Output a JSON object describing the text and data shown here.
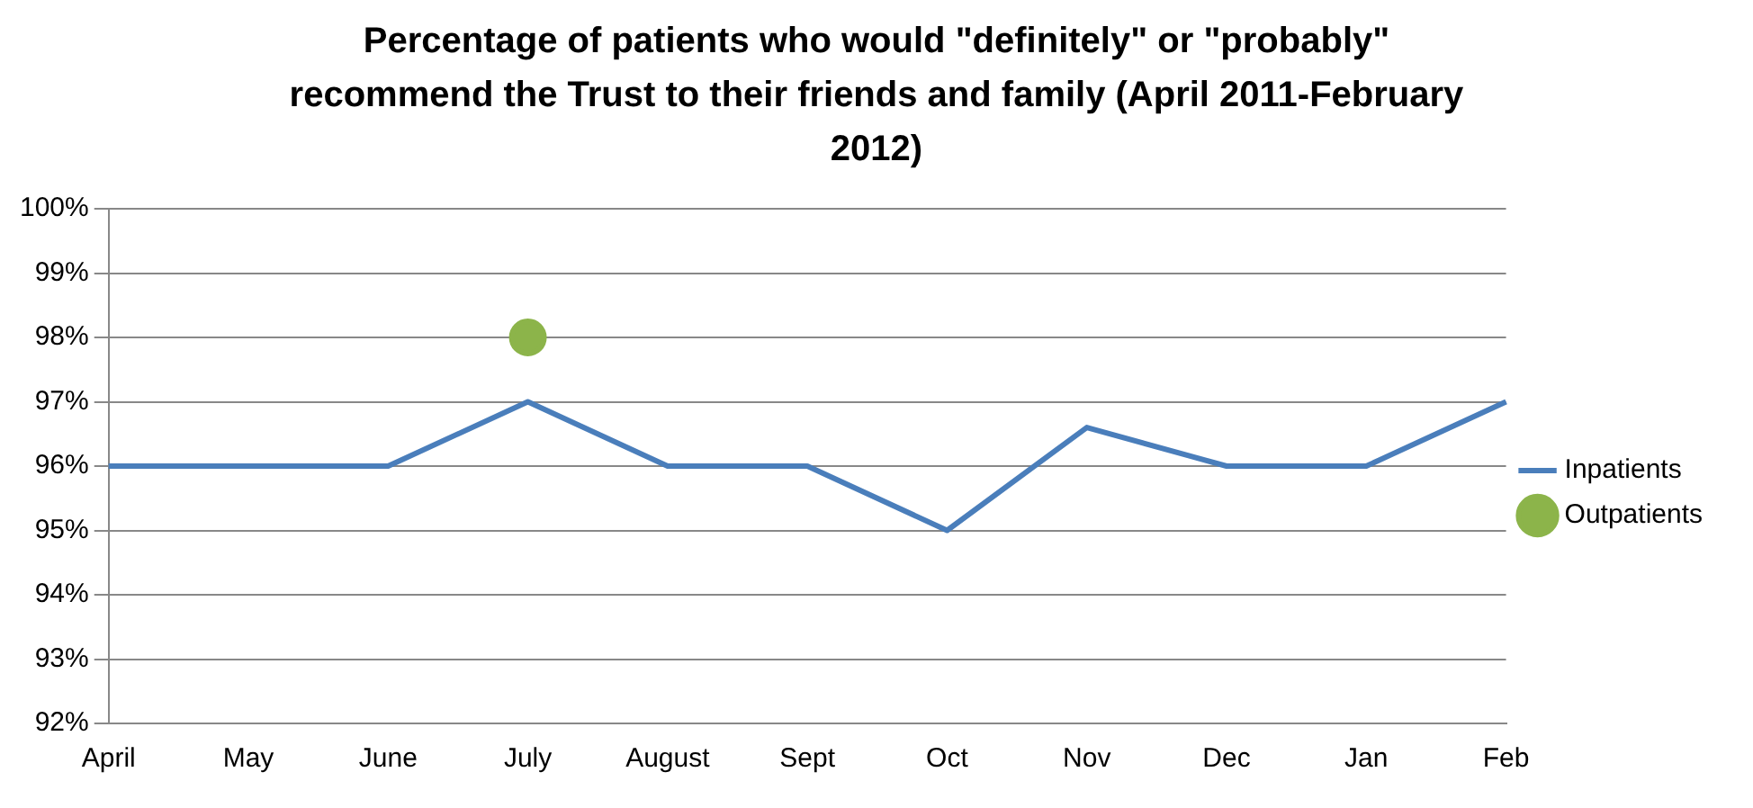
{
  "chart_data": {
    "type": "line",
    "title": "Percentage of patients who would \"definitely\" or \"probably\" recommend the Trust to their friends and family (April 2011-February 2012)",
    "categories": [
      "April",
      "May",
      "June",
      "July",
      "August",
      "Sept",
      "Oct",
      "Nov",
      "Dec",
      "Jan",
      "Feb"
    ],
    "series": [
      {
        "name": "Inpatients",
        "color": "#4a7ebb",
        "marker": "none",
        "values": [
          96,
          96,
          96,
          97,
          96,
          96,
          95,
          96.6,
          96,
          96,
          97
        ]
      },
      {
        "name": "Outpatients",
        "color": "#8cb44a",
        "marker": "circle",
        "values": [
          null,
          null,
          null,
          98,
          null,
          null,
          null,
          null,
          null,
          null,
          null
        ]
      }
    ],
    "ylim": [
      92,
      100
    ],
    "yticks": [
      {
        "value": 92,
        "label": "92%"
      },
      {
        "value": 93,
        "label": "93%"
      },
      {
        "value": 94,
        "label": "94%"
      },
      {
        "value": 95,
        "label": "95%"
      },
      {
        "value": 96,
        "label": "96%"
      },
      {
        "value": 97,
        "label": "97%"
      },
      {
        "value": 98,
        "label": "98%"
      },
      {
        "value": 99,
        "label": "99%"
      },
      {
        "value": 100,
        "label": "100%"
      }
    ],
    "grid": "y",
    "legend": "right",
    "line_style": "solid"
  }
}
